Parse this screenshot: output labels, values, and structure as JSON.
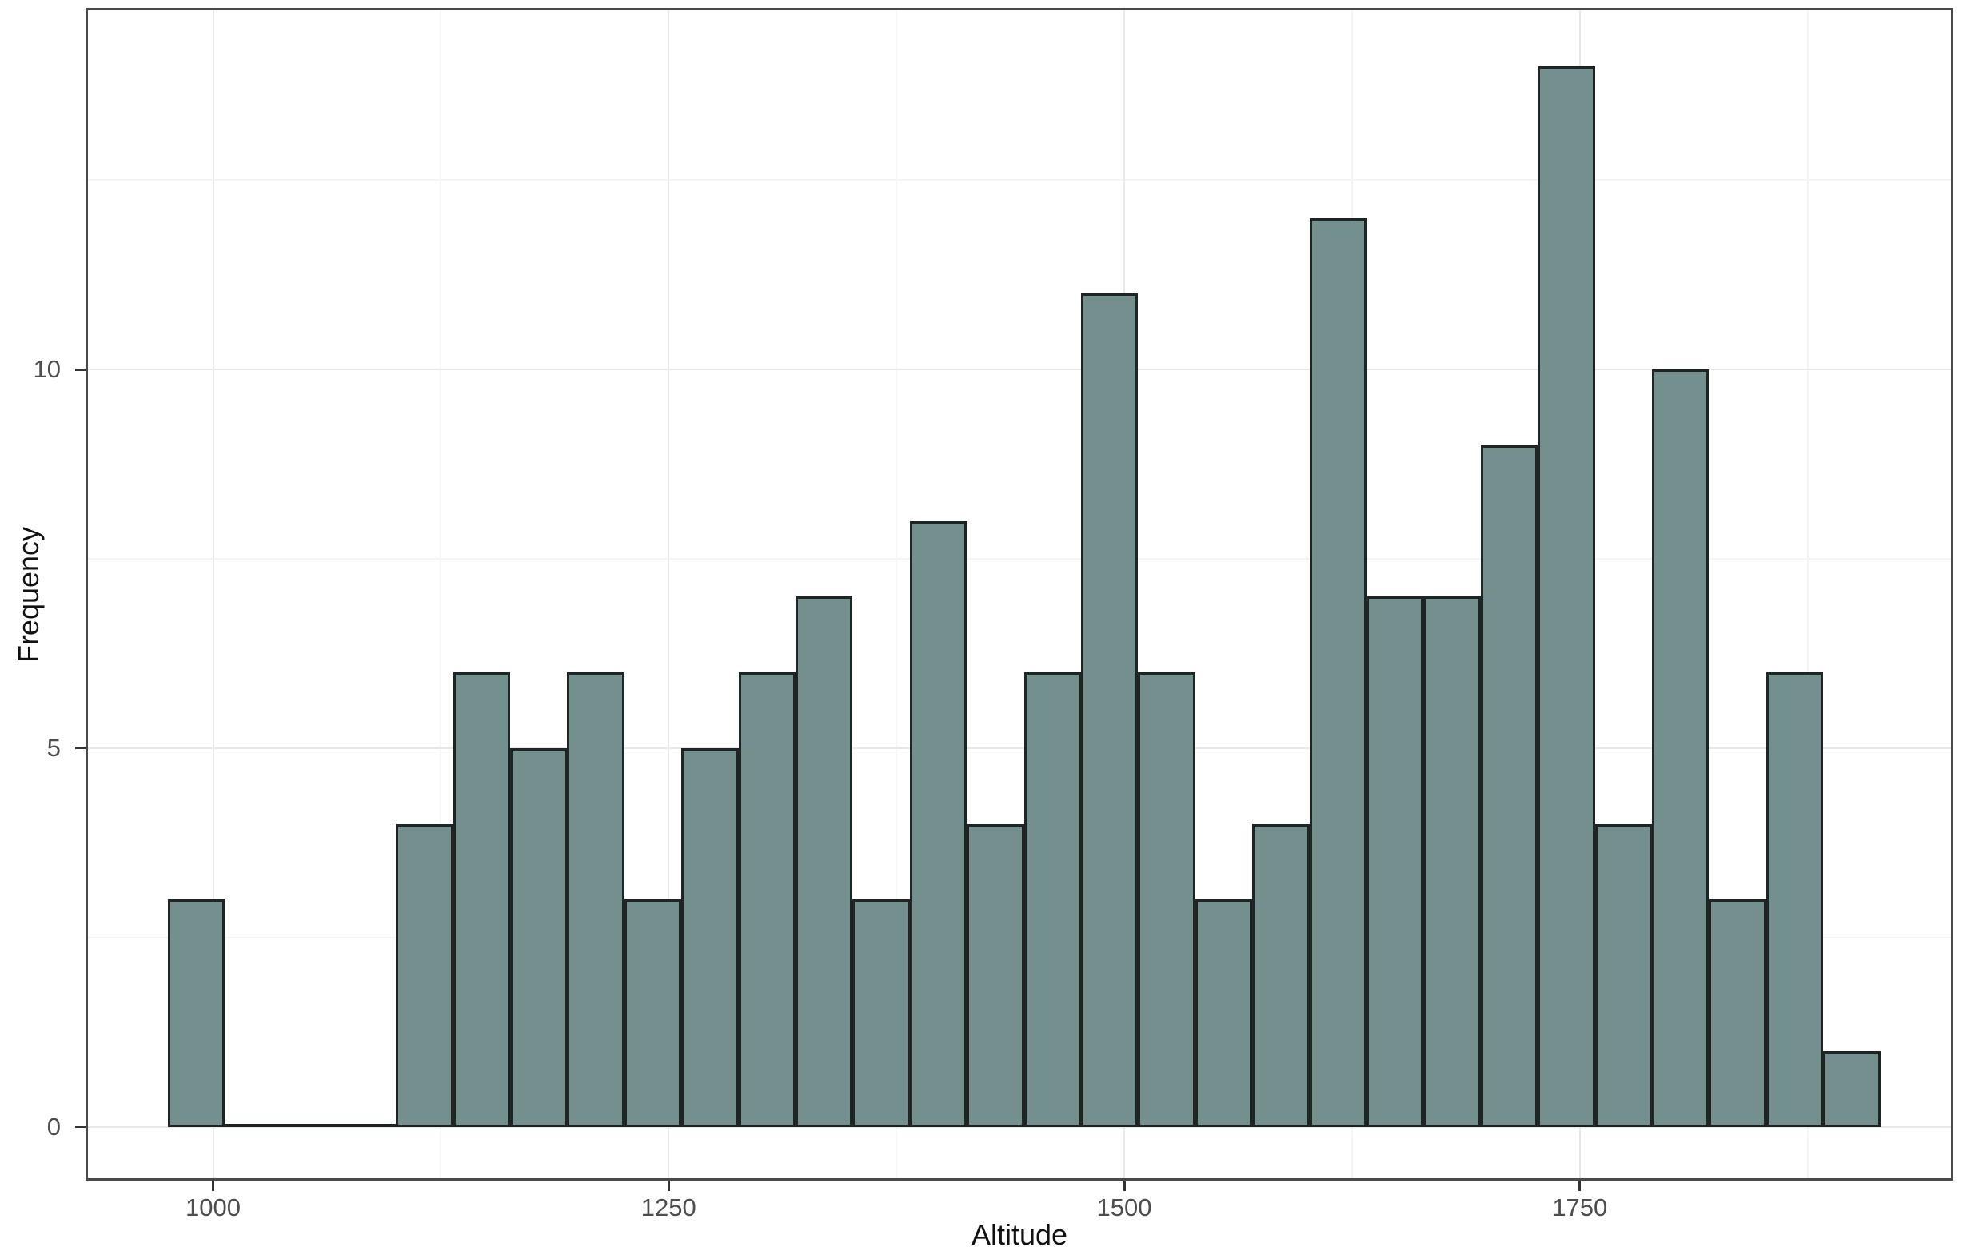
{
  "chart_data": {
    "type": "bar",
    "subtype": "histogram",
    "title": "",
    "xlabel": "Altitude",
    "ylabel": "Frequency",
    "x_axis": {
      "domain": [
        930,
        1955
      ],
      "tick_values": [
        1000,
        1250,
        1500,
        1750
      ],
      "tick_labels": [
        "1000",
        "1250",
        "1500",
        "1750"
      ],
      "minor_gridlines": [
        1125,
        1375,
        1625,
        1875
      ]
    },
    "y_axis": {
      "domain": [
        -0.71,
        14.77
      ],
      "tick_values": [
        0,
        5,
        10
      ],
      "tick_labels": [
        "0",
        "5",
        "10"
      ],
      "minor_gridlines": [
        2.5,
        7.5,
        12.5
      ]
    },
    "bins": {
      "start": 975,
      "width": 31.33,
      "counts": [
        3,
        0,
        0,
        0,
        4,
        6,
        5,
        6,
        3,
        5,
        6,
        7,
        3,
        8,
        4,
        6,
        11,
        6,
        3,
        4,
        12,
        7,
        7,
        9,
        14,
        4,
        10,
        3,
        6,
        1
      ]
    },
    "total_observations": 163,
    "max_count": 14,
    "grid": "major and minor, light gray on white",
    "legend": "none",
    "colors": {
      "background": "#FFFFFF",
      "bar_fill": "#74908E",
      "bar_border": "#1F2424",
      "grid_major": "#E8E8E8",
      "grid_minor": "#F4F4F4",
      "panel_border": "#4A4A4A",
      "tick_mark": "#333333",
      "tick_label": "#4D4D4D",
      "axis_title": "#111111"
    }
  }
}
